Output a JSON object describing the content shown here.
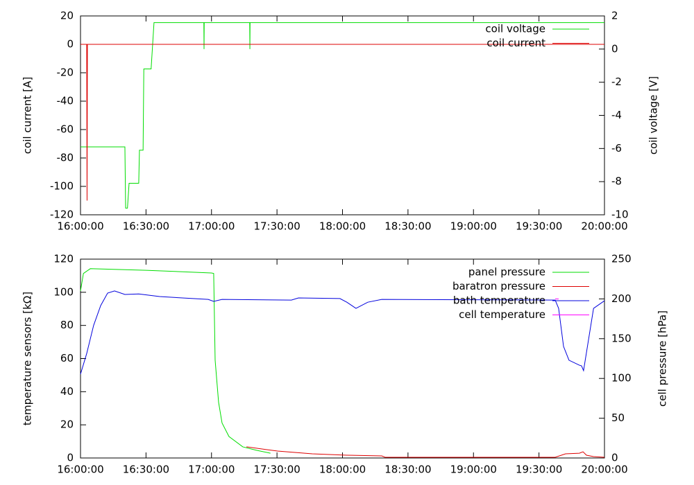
{
  "chart_data": [
    {
      "type": "line",
      "y_label": "coil current [A]",
      "y2_label": "coil voltage [V]",
      "xlim": [
        "16:00:00",
        "20:00:00"
      ],
      "xticks": [
        "16:00:00",
        "16:30:00",
        "17:00:00",
        "17:30:00",
        "18:00:00",
        "18:30:00",
        "19:00:00",
        "19:30:00",
        "20:00:00"
      ],
      "ylim": [
        -120,
        20
      ],
      "yticks": [
        -120,
        -100,
        -80,
        -60,
        -40,
        -20,
        0,
        20
      ],
      "y2lim": [
        -10,
        2
      ],
      "y2ticks": [
        -10,
        -8,
        -6,
        -4,
        -2,
        0,
        2
      ],
      "legend": "upper right",
      "series": [
        {
          "name": "coil voltage",
          "color": "#00dd00",
          "axis": "y2",
          "x": [
            "16:00:00",
            "16:20:20",
            "16:20:40",
            "16:21:30",
            "16:22:15",
            "16:26:40",
            "16:27:00",
            "16:28:40",
            "16:29:00",
            "16:32:20",
            "16:33:40",
            "16:56:30",
            "16:56:35",
            "16:56:40",
            "17:17:30",
            "17:17:35",
            "17:17:40",
            "20:00:00"
          ],
          "values": [
            -5.9,
            -5.9,
            -9.6,
            -9.6,
            -8.1,
            -8.1,
            -6.1,
            -6.1,
            -1.2,
            -1.2,
            1.6,
            1.6,
            0,
            1.6,
            1.6,
            0,
            1.6,
            1.6
          ]
        },
        {
          "name": "coil current",
          "color": "#dd0000",
          "x": [
            "16:00:00",
            "16:02:50",
            "16:03:00",
            "16:03:10",
            "20:00:00"
          ],
          "values": [
            0,
            0,
            -110,
            0,
            0
          ]
        }
      ]
    },
    {
      "type": "line",
      "y_label": "temperature sensors [kΩ]",
      "y2_label": "cell pressure [hPa]",
      "xlim": [
        "16:00:00",
        "20:00:00"
      ],
      "xticks": [
        "16:00:00",
        "16:30:00",
        "17:00:00",
        "17:30:00",
        "18:00:00",
        "18:30:00",
        "19:00:00",
        "19:30:00",
        "20:00:00"
      ],
      "ylim": [
        0,
        120
      ],
      "yticks": [
        0,
        20,
        40,
        60,
        80,
        100,
        120
      ],
      "y2lim": [
        0,
        250
      ],
      "y2ticks": [
        0,
        50,
        100,
        150,
        200,
        250
      ],
      "legend": "upper right",
      "series": [
        {
          "name": "panel pressure",
          "color": "#00dd00",
          "axis": "y2",
          "x": [
            "16:00:00",
            "16:01:20",
            "16:04:30",
            "16:30:00",
            "17:00:00",
            "17:01:00",
            "17:01:40",
            "17:03:15",
            "17:04:50",
            "17:08:00",
            "17:14:20",
            "17:20:45",
            "17:27:00"
          ],
          "values": [
            210,
            232,
            238,
            236,
            232.6,
            232,
            123,
            70,
            44,
            27,
            14,
            9.6,
            6
          ]
        },
        {
          "name": "baratron pressure",
          "color": "#dd0000",
          "axis": "y2",
          "x": [
            "17:16:00",
            "17:30:15",
            "17:46:10",
            "18:02:00",
            "18:18:00",
            "18:19:30",
            "19:37:25",
            "19:42:10",
            "19:48:30",
            "19:50:10",
            "19:51:45",
            "19:55:00",
            "20:00:00"
          ],
          "values": [
            14,
            8.7,
            5.2,
            3.5,
            2.6,
            0.9,
            0.9,
            5.2,
            6,
            7.8,
            3.5,
            1.7,
            0.9
          ]
        },
        {
          "name": "bath temperature",
          "color": "#0000dd",
          "x": [
            "16:00:00",
            "16:02:50",
            "16:06:00",
            "16:09:15",
            "16:12:25",
            "16:15:35",
            "16:20:20",
            "16:26:40",
            "16:36:15",
            "16:58:30",
            "17:01:00",
            "17:04:50",
            "17:36:35",
            "17:39:50",
            "17:58:50",
            "18:02:00",
            "18:06:10",
            "18:11:35",
            "18:18:00",
            "19:37:25",
            "19:39:00",
            "19:41:15",
            "19:43:45",
            "19:48:30",
            "19:49:30",
            "19:50:25",
            "19:55:00",
            "20:00:00"
          ],
          "values": [
            50.6,
            63,
            80,
            92,
            99.5,
            100.8,
            98.7,
            99,
            97.4,
            95.7,
            94.5,
            95.7,
            95.3,
            96.6,
            96.2,
            94,
            90.3,
            94,
            95.7,
            95.3,
            90.3,
            67.3,
            59,
            56,
            55.6,
            52.7,
            90.3,
            94.9
          ]
        },
        {
          "name": "cell temperature",
          "color": "#ff00ff",
          "x": [
            "19:37:25",
            "19:39:00"
          ],
          "values": [
            96,
            96
          ]
        }
      ]
    }
  ]
}
